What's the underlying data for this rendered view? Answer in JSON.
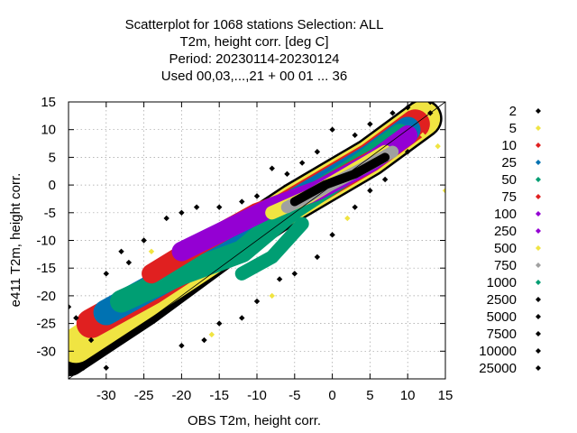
{
  "chart_data": {
    "type": "scatter",
    "title_lines": [
      "Scatterplot for 1068 stations Selection: ALL",
      "T2m, height corr. [deg C]",
      "Period: 20230114-20230124",
      "Used  00,03,...,21  + 00 01 ... 36"
    ],
    "xlabel": "OBS T2m, height corr.",
    "ylabel": "e411 T2m, height corr.",
    "xlim": [
      -35,
      15
    ],
    "ylim": [
      -35,
      15
    ],
    "x_ticks": [
      -30,
      -25,
      -20,
      -15,
      -10,
      -5,
      0,
      5,
      10,
      15
    ],
    "y_ticks": [
      -30,
      -25,
      -20,
      -15,
      -10,
      -5,
      0,
      5,
      10,
      15
    ],
    "grid": true,
    "diagonal_line": true,
    "legend_position": "right",
    "legend": [
      {
        "label": "2",
        "color": "#000000"
      },
      {
        "label": "5",
        "color": "#f0e442"
      },
      {
        "label": "10",
        "color": "#e02020"
      },
      {
        "label": "25",
        "color": "#0072b2"
      },
      {
        "label": "50",
        "color": "#009e73"
      },
      {
        "label": "75",
        "color": "#e02020"
      },
      {
        "label": "100",
        "color": "#9400d3"
      },
      {
        "label": "250",
        "color": "#9400d3"
      },
      {
        "label": "500",
        "color": "#f0e442"
      },
      {
        "label": "750",
        "color": "#a0a0a0"
      },
      {
        "label": "1000",
        "color": "#009e73"
      },
      {
        "label": "2500",
        "color": "#000000"
      },
      {
        "label": "5000",
        "color": "#000000"
      },
      {
        "label": "7500",
        "color": "#000000"
      },
      {
        "label": "10000",
        "color": "#000000"
      },
      {
        "label": "25000",
        "color": "#000000"
      }
    ],
    "density_bands": [
      {
        "level": "2",
        "color": "#000000",
        "center": [
          [
            -35,
            -31
          ],
          [
            -25,
            -22
          ],
          [
            -15,
            -12
          ],
          [
            -5,
            -3
          ],
          [
            5,
            5
          ],
          [
            12,
            12
          ]
        ],
        "width": 5.2
      },
      {
        "level": "5",
        "color": "#f0e442",
        "center": [
          [
            -34,
            -29
          ],
          [
            -25,
            -21
          ],
          [
            -15,
            -12
          ],
          [
            -5,
            -3
          ],
          [
            5,
            5
          ],
          [
            12,
            12
          ]
        ],
        "width": 4.6
      },
      {
        "level": "10",
        "color": "#e02020",
        "center": [
          [
            -32,
            -25
          ],
          [
            -24,
            -19
          ],
          [
            -15,
            -11
          ],
          [
            -5,
            -3
          ],
          [
            5,
            5
          ],
          [
            11,
            11
          ]
        ],
        "width": 3.9
      },
      {
        "level": "25",
        "color": "#0072b2",
        "center": [
          [
            -30,
            -23
          ],
          [
            -22,
            -17
          ],
          [
            -14,
            -11
          ],
          [
            -5,
            -3
          ],
          [
            5,
            5
          ],
          [
            10,
            10
          ]
        ],
        "width": 3.4
      },
      {
        "level": "50",
        "color": "#009e73",
        "center": [
          [
            -28,
            -21
          ],
          [
            -20,
            -16
          ],
          [
            -12,
            -12
          ],
          [
            -5,
            -4
          ],
          [
            4,
            4
          ],
          [
            9,
            9
          ]
        ],
        "width": 3.0
      },
      {
        "level": "75",
        "color": "#e02020",
        "center": [
          [
            -24,
            -16
          ],
          [
            -18,
            -11
          ],
          [
            -10,
            -5
          ],
          [
            -2,
            -1
          ],
          [
            6,
            5
          ]
        ],
        "width": 2.6
      },
      {
        "level": "250",
        "color": "#9400d3",
        "center": [
          [
            -20,
            -12
          ],
          [
            -14,
            -8
          ],
          [
            -8,
            -4
          ],
          [
            -2,
            -1
          ],
          [
            5,
            4
          ],
          [
            10,
            9
          ]
        ],
        "width": 2.6
      },
      {
        "level": "500",
        "color": "#f0e442",
        "center": [
          [
            -8,
            -5
          ],
          [
            -3,
            -2
          ],
          [
            2,
            2
          ],
          [
            7,
            6
          ]
        ],
        "width": 1.8
      },
      {
        "level": "750",
        "color": "#a0a0a0",
        "center": [
          [
            -6,
            -4
          ],
          [
            -1,
            -0.5
          ],
          [
            4,
            3
          ],
          [
            8,
            6
          ]
        ],
        "width": 1.6
      },
      {
        "level": "1000",
        "color": "#009e73",
        "center": [
          [
            -12,
            -16
          ],
          [
            -8,
            -13
          ],
          [
            -4,
            -7
          ]
        ],
        "width": 1.8
      },
      {
        "level": "2500",
        "color": "#000000",
        "center": [
          [
            -5,
            -3
          ],
          [
            -1,
            0
          ],
          [
            3,
            2
          ],
          [
            7,
            5
          ]
        ],
        "width": 1.2
      }
    ],
    "outlier_points": [
      {
        "x": -33,
        "y": -33,
        "color": "#000000"
      },
      {
        "x": -30,
        "y": -33,
        "color": "#000000"
      },
      {
        "x": -32,
        "y": -28,
        "color": "#000000"
      },
      {
        "x": -28,
        "y": -12,
        "color": "#000000"
      },
      {
        "x": -25,
        "y": -10,
        "color": "#000000"
      },
      {
        "x": -22,
        "y": -6,
        "color": "#000000"
      },
      {
        "x": -20,
        "y": -5,
        "color": "#000000"
      },
      {
        "x": -18,
        "y": -4,
        "color": "#000000"
      },
      {
        "x": -15,
        "y": -4,
        "color": "#000000"
      },
      {
        "x": -12,
        "y": -3,
        "color": "#000000"
      },
      {
        "x": -10,
        "y": -2,
        "color": "#000000"
      },
      {
        "x": -8,
        "y": 3,
        "color": "#000000"
      },
      {
        "x": -6,
        "y": 2,
        "color": "#000000"
      },
      {
        "x": -4,
        "y": 4,
        "color": "#000000"
      },
      {
        "x": -2,
        "y": 6,
        "color": "#000000"
      },
      {
        "x": 0,
        "y": 10,
        "color": "#000000"
      },
      {
        "x": 3,
        "y": 9,
        "color": "#000000"
      },
      {
        "x": 5,
        "y": 11,
        "color": "#000000"
      },
      {
        "x": 8,
        "y": 13,
        "color": "#000000"
      },
      {
        "x": 10,
        "y": 14,
        "color": "#000000"
      },
      {
        "x": 13,
        "y": 13,
        "color": "#000000"
      },
      {
        "x": 13,
        "y": 15,
        "color": "#000000"
      },
      {
        "x": -20,
        "y": -29,
        "color": "#000000"
      },
      {
        "x": -17,
        "y": -28,
        "color": "#000000"
      },
      {
        "x": -15,
        "y": -25,
        "color": "#000000"
      },
      {
        "x": -12,
        "y": -24,
        "color": "#000000"
      },
      {
        "x": -10,
        "y": -21,
        "color": "#000000"
      },
      {
        "x": -7,
        "y": -17,
        "color": "#000000"
      },
      {
        "x": -5,
        "y": -16,
        "color": "#000000"
      },
      {
        "x": -2,
        "y": -13,
        "color": "#000000"
      },
      {
        "x": 0,
        "y": -9,
        "color": "#000000"
      },
      {
        "x": 3,
        "y": -4,
        "color": "#000000"
      },
      {
        "x": 5,
        "y": -1,
        "color": "#000000"
      },
      {
        "x": 7,
        "y": 1,
        "color": "#000000"
      },
      {
        "x": 10,
        "y": 6,
        "color": "#000000"
      },
      {
        "x": 15,
        "y": -1,
        "color": "#f0e442"
      },
      {
        "x": 14,
        "y": 7,
        "color": "#f0e442"
      },
      {
        "x": 12,
        "y": 9,
        "color": "#f0e442"
      },
      {
        "x": -34,
        "y": -24,
        "color": "#000000"
      },
      {
        "x": -35,
        "y": -22,
        "color": "#000000"
      },
      {
        "x": -30,
        "y": -16,
        "color": "#000000"
      },
      {
        "x": -27,
        "y": -14,
        "color": "#000000"
      },
      {
        "x": -24,
        "y": -12,
        "color": "#f0e442"
      },
      {
        "x": -16,
        "y": -27,
        "color": "#f0e442"
      },
      {
        "x": -8,
        "y": -20,
        "color": "#f0e442"
      },
      {
        "x": 2,
        "y": -6,
        "color": "#f0e442"
      }
    ]
  }
}
